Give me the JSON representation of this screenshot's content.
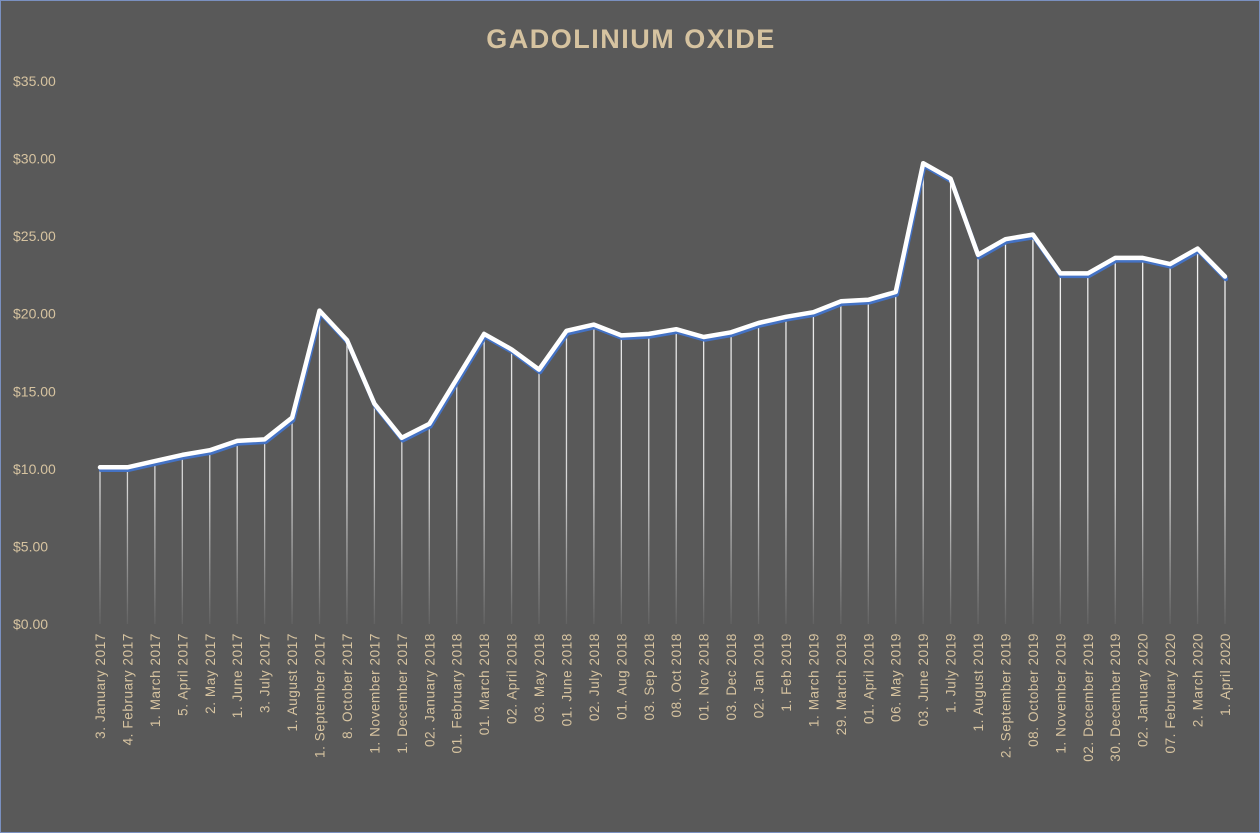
{
  "chart_data": {
    "type": "line",
    "title": "GADOLINIUM OXIDE",
    "xlabel": "",
    "ylabel": "",
    "ylim": [
      0,
      35
    ],
    "yticks": [
      0,
      5,
      10,
      15,
      20,
      25,
      30,
      35
    ],
    "ytick_labels": [
      "$0.00",
      "$5.00",
      "$10.00",
      "$15.00",
      "$20.00",
      "$25.00",
      "$30.00",
      "$35.00"
    ],
    "grid": false,
    "drop_lines": true,
    "colors": {
      "background": "#595959",
      "line": "#ffffff",
      "line_shadow": "#4472c4",
      "text": "#d6c3a0"
    },
    "categories": [
      "3. January 2017",
      "4. February 2017",
      "1. March 2017",
      "5. April 2017",
      "2. May 2017",
      "1. June 2017",
      "3. July 2017",
      "1. August 2017",
      "1. September 2017",
      "8. October 2017",
      "1. November 2017",
      "1. December 2017",
      "02. January 2018",
      "01. February 2018",
      "01. March 2018",
      "02. April 2018",
      "03. May 2018",
      "01. June 2018",
      "02. July 2018",
      "01. Aug 2018",
      "03. Sep 2018",
      "08. Oct 2018",
      "01. Nov 2018",
      "03. Dec 2018",
      "02. Jan 2019",
      "1. Feb 2019",
      "1. March 2019",
      "29. March 2019",
      "01. April 2019",
      "06. May 2019",
      "03. June 2019",
      "1. July 2019",
      "1. August 2019",
      "2. September 2019",
      "08. October 2019",
      "1. November 2019",
      "02. December 2019",
      "30. December 2019",
      "02. January 2020",
      "07. February 2020",
      "2. March 2020",
      "1. April 2020"
    ],
    "series": [
      {
        "values": [
          10.1,
          10.1,
          10.5,
          10.9,
          11.2,
          11.8,
          11.9,
          13.3,
          20.2,
          18.3,
          14.2,
          12.0,
          12.9,
          15.8,
          18.7,
          17.7,
          16.4,
          18.9,
          19.3,
          18.6,
          18.7,
          19.0,
          18.5,
          18.8,
          19.4,
          19.8,
          20.1,
          20.8,
          20.9,
          21.4,
          29.7,
          28.7,
          23.8,
          24.8,
          25.1,
          22.6,
          22.6,
          23.6,
          23.6,
          23.2,
          24.2,
          22.4
        ]
      }
    ]
  }
}
